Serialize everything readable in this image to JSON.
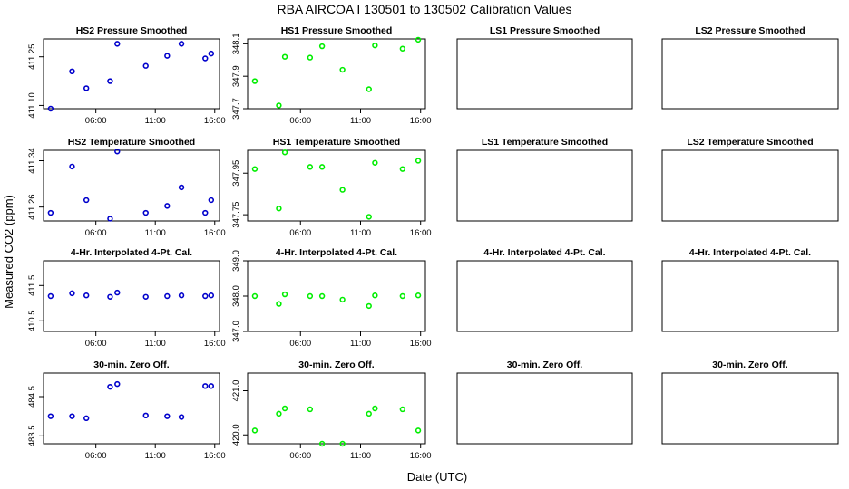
{
  "figure": {
    "title": "RBA   AIRCOA I   130501 to 130502   Calibration Values",
    "xlabel": "Date (UTC)",
    "ylabel": "Measured CO2 (ppm)"
  },
  "colors": {
    "HS2": "#0000cc",
    "HS1": "#00ee00"
  },
  "chart_data": [
    {
      "id": "hs2-pressure",
      "type": "scatter",
      "title": "HS2 Pressure Smoothed",
      "color": "#0000cc",
      "xlim": [
        1.6,
        16.4
      ],
      "ylim": [
        411.09,
        411.305
      ],
      "yticks": [
        411.1,
        411.25
      ],
      "ytick_labels": [
        "411.10",
        "411.25"
      ],
      "xticks": [
        6,
        11,
        16
      ],
      "xtick_labels": [
        "06:00",
        "11:00",
        "16:00"
      ],
      "x": [
        2.2,
        4.0,
        5.2,
        7.2,
        7.8,
        10.2,
        12.0,
        13.2,
        15.2,
        15.7
      ],
      "y": [
        411.09,
        411.205,
        411.153,
        411.175,
        411.29,
        411.222,
        411.253,
        411.29,
        411.245,
        411.26
      ]
    },
    {
      "id": "hs1-pressure",
      "type": "scatter",
      "title": "HS1 Pressure Smoothed",
      "color": "#00ee00",
      "xlim": [
        1.6,
        16.4
      ],
      "ylim": [
        347.7,
        348.13
      ],
      "yticks": [
        347.7,
        347.9,
        348.1
      ],
      "ytick_labels": [
        "347.7",
        "347.9",
        "348.1"
      ],
      "xticks": [
        6,
        11,
        16
      ],
      "xtick_labels": [
        "06:00",
        "11:00",
        "16:00"
      ],
      "x": [
        2.2,
        4.2,
        4.7,
        6.8,
        7.8,
        9.5,
        11.7,
        12.2,
        14.5,
        15.8
      ],
      "y": [
        347.87,
        347.72,
        348.02,
        348.015,
        348.085,
        347.94,
        347.82,
        348.09,
        348.07,
        348.125
      ]
    },
    {
      "id": "ls1-pressure",
      "type": "scatter",
      "title": "LS1 Pressure Smoothed"
    },
    {
      "id": "ls2-pressure",
      "type": "scatter",
      "title": "LS2 Pressure Smoothed"
    },
    {
      "id": "hs2-temperature",
      "type": "scatter",
      "title": "HS2 Temperature Smoothed",
      "color": "#0000cc",
      "xlim": [
        1.6,
        16.4
      ],
      "ylim": [
        411.236,
        411.358
      ],
      "yticks": [
        411.26,
        411.34
      ],
      "ytick_labels": [
        "411.26",
        "411.34"
      ],
      "xticks": [
        6,
        11,
        16
      ],
      "xtick_labels": [
        "06:00",
        "11:00",
        "16:00"
      ],
      "x": [
        2.2,
        4.0,
        5.2,
        7.2,
        7.8,
        10.2,
        12.0,
        13.2,
        15.2,
        15.7
      ],
      "y": [
        411.25,
        411.33,
        411.272,
        411.24,
        411.356,
        411.25,
        411.262,
        411.294,
        411.25,
        411.272
      ]
    },
    {
      "id": "hs1-temperature",
      "type": "scatter",
      "title": "HS1 Temperature Smoothed",
      "color": "#00ee00",
      "xlim": [
        1.6,
        16.4
      ],
      "ylim": [
        347.72,
        348.06
      ],
      "yticks": [
        347.75,
        347.95
      ],
      "ytick_labels": [
        "347.75",
        "347.95"
      ],
      "xticks": [
        6,
        11,
        16
      ],
      "xtick_labels": [
        "06:00",
        "11:00",
        "16:00"
      ],
      "x": [
        2.2,
        4.2,
        4.7,
        6.8,
        7.8,
        9.5,
        11.7,
        12.2,
        14.5,
        15.8
      ],
      "y": [
        347.97,
        347.78,
        348.05,
        347.98,
        347.98,
        347.87,
        347.74,
        348.0,
        347.97,
        348.01
      ]
    },
    {
      "id": "ls1-temperature",
      "type": "scatter",
      "title": "LS1 Temperature Smoothed"
    },
    {
      "id": "ls2-temperature",
      "type": "scatter",
      "title": "LS2 Temperature Smoothed"
    },
    {
      "id": "hs2-interp",
      "type": "scatter",
      "title": "4-Hr. Interpolated 4-Pt. Cal.",
      "color": "#0000cc",
      "xlim": [
        1.6,
        16.4
      ],
      "ylim": [
        410.2,
        412.2
      ],
      "yticks": [
        410.5,
        411.5
      ],
      "ytick_labels": [
        "410.5",
        "411.5"
      ],
      "xticks": [
        6,
        11,
        16
      ],
      "xtick_labels": [
        "06:00",
        "11:00",
        "16:00"
      ],
      "x": [
        2.2,
        4.0,
        5.2,
        7.2,
        7.8,
        10.2,
        12.0,
        13.2,
        15.2,
        15.7
      ],
      "y": [
        411.2,
        411.28,
        411.22,
        411.18,
        411.3,
        411.18,
        411.2,
        411.22,
        411.2,
        411.22
      ]
    },
    {
      "id": "hs1-interp",
      "type": "scatter",
      "title": "4-Hr. Interpolated 4-Pt. Cal.",
      "color": "#00ee00",
      "xlim": [
        1.6,
        16.4
      ],
      "ylim": [
        347.0,
        349.0
      ],
      "yticks": [
        347.0,
        348.0,
        349.0
      ],
      "ytick_labels": [
        "347.0",
        "348.0",
        "349.0"
      ],
      "xticks": [
        6,
        11,
        16
      ],
      "xtick_labels": [
        "06:00",
        "11:00",
        "16:00"
      ],
      "x": [
        2.2,
        4.2,
        4.7,
        6.8,
        7.8,
        9.5,
        11.7,
        12.2,
        14.5,
        15.8
      ],
      "y": [
        348.0,
        347.78,
        348.05,
        348.0,
        348.0,
        347.9,
        347.72,
        348.02,
        348.0,
        348.02
      ]
    },
    {
      "id": "ls1-interp",
      "type": "scatter",
      "title": "4-Hr. Interpolated 4-Pt. Cal."
    },
    {
      "id": "ls2-interp",
      "type": "scatter",
      "title": "4-Hr. Interpolated 4-Pt. Cal."
    },
    {
      "id": "hs2-zero",
      "type": "scatter",
      "title": "30-min. Zero Off.",
      "color": "#0000cc",
      "xlim": [
        1.6,
        16.4
      ],
      "ylim": [
        483.3,
        485.1
      ],
      "yticks": [
        483.5,
        484.5
      ],
      "ytick_labels": [
        "483.5",
        "484.5"
      ],
      "xticks": [
        6,
        11,
        16
      ],
      "xtick_labels": [
        "06:00",
        "11:00",
        "16:00"
      ],
      "x": [
        2.2,
        4.0,
        5.2,
        7.2,
        7.8,
        10.2,
        12.0,
        13.2,
        15.2,
        15.7
      ],
      "y": [
        484.0,
        484.0,
        483.95,
        484.75,
        484.82,
        484.02,
        484.0,
        483.98,
        484.77,
        484.77
      ]
    },
    {
      "id": "hs1-zero",
      "type": "scatter",
      "title": "30-min. Zero Off.",
      "color": "#00ee00",
      "xlim": [
        1.6,
        16.4
      ],
      "ylim": [
        419.8,
        421.4
      ],
      "yticks": [
        420.0,
        421.0
      ],
      "ytick_labels": [
        "420.0",
        "421.0"
      ],
      "xticks": [
        6,
        11,
        16
      ],
      "xtick_labels": [
        "06:00",
        "11:00",
        "16:00"
      ],
      "x": [
        2.2,
        4.2,
        4.7,
        6.8,
        7.8,
        9.5,
        11.7,
        12.2,
        14.5,
        15.8
      ],
      "y": [
        420.1,
        420.48,
        420.6,
        420.58,
        419.8,
        419.75,
        420.48,
        420.6,
        420.58,
        420.1
      ]
    },
    {
      "id": "ls1-zero",
      "type": "scatter",
      "title": "30-min. Zero Off."
    },
    {
      "id": "ls2-zero",
      "type": "scatter",
      "title": "30-min. Zero Off."
    }
  ]
}
